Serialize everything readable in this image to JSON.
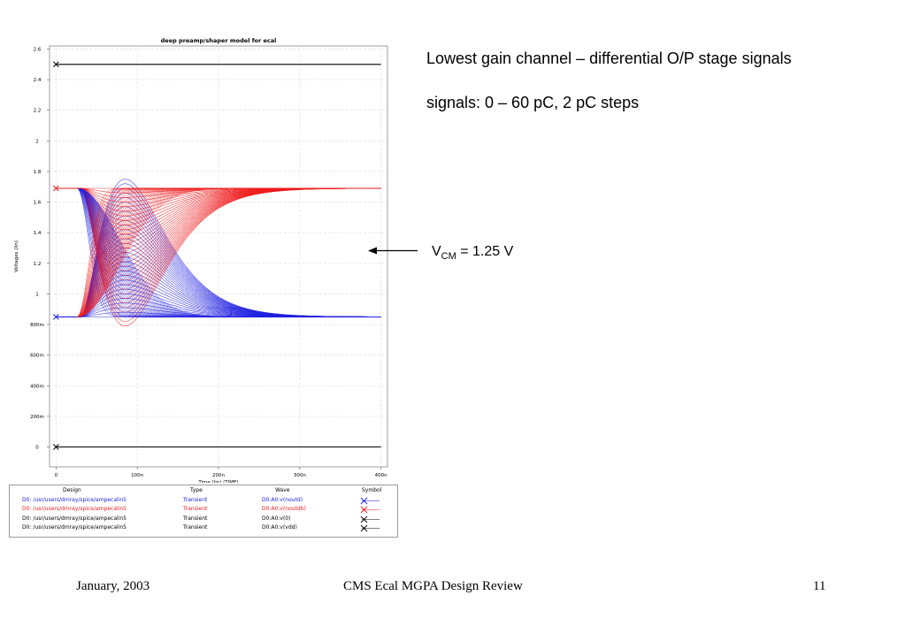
{
  "chart_data": {
    "type": "line",
    "title": "deep preamp/shaper model for ecal",
    "xlabel": "Time (lin) (TIME)",
    "ylabel": "Voltages (lin)",
    "xlim": [
      -8,
      408
    ],
    "ylim": [
      -0.13,
      2.62
    ],
    "xticks": [
      {
        "value": 0,
        "label": "0"
      },
      {
        "value": 100,
        "label": "100n"
      },
      {
        "value": 200,
        "label": "200n"
      },
      {
        "value": 300,
        "label": "300n"
      },
      {
        "value": 400,
        "label": "400n"
      }
    ],
    "yticks": [
      {
        "value": 0,
        "label": "0"
      },
      {
        "value": 0.2,
        "label": "200m"
      },
      {
        "value": 0.4,
        "label": "400m"
      },
      {
        "value": 0.6,
        "label": "600m"
      },
      {
        "value": 0.8,
        "label": "800m"
      },
      {
        "value": 1.0,
        "label": "1"
      },
      {
        "value": 1.2,
        "label": "1.2"
      },
      {
        "value": 1.4,
        "label": "1.4"
      },
      {
        "value": 1.6,
        "label": "1.6"
      },
      {
        "value": 1.8,
        "label": "1.8"
      },
      {
        "value": 2.0,
        "label": "2"
      },
      {
        "value": 2.2,
        "label": "2.2"
      },
      {
        "value": 2.4,
        "label": "2.4"
      },
      {
        "value": 2.6,
        "label": "2.6"
      }
    ],
    "grid": true,
    "series": [
      {
        "wave": "D0:A0:v(noutd)",
        "color": "#2020e0",
        "baseline": 0.85,
        "pulse_start_ns": 30,
        "peak_ns": 85,
        "charge_pC": {
          "min": 0,
          "max": 60,
          "step": 2
        },
        "max_excursion": 0.9
      },
      {
        "wave": "D0:A0:v(noutdb)",
        "color": "#ee1c1c",
        "baseline": 1.69,
        "pulse_start_ns": 30,
        "peak_ns": 85,
        "charge_pC": {
          "min": 0,
          "max": 60,
          "step": 2
        },
        "max_excursion": -0.9
      },
      {
        "wave": "D0:A0:v(0)",
        "color": "#000000",
        "constant": 0.0
      },
      {
        "wave": "D0:A0:v(vdd)",
        "color": "#000000",
        "constant": 2.5
      }
    ]
  },
  "legend": {
    "headers": {
      "design": "Design",
      "type": "Type",
      "wave": "Wave",
      "symbol": "Symbol"
    },
    "rows": [
      {
        "design": "D0: /usr/users/dmray/spice/ampecalin5",
        "type": "Transient",
        "wave": "D0:A0:v(noutd)",
        "color": "#2020e0"
      },
      {
        "design": "D0: /usr/users/dmray/spice/ampecalin5",
        "type": "Transient",
        "wave": "D0:A0:v(noutdb)",
        "color": "#ee1c1c"
      },
      {
        "design": "D0: /usr/users/dmray/spice/ampecalin5",
        "type": "Transient",
        "wave": "D0:A0:v(0)",
        "color": "#000000"
      },
      {
        "design": "D0: /usr/users/dmray/spice/ampecalin5",
        "type": "Transient",
        "wave": "D0:A0:v(vdd)",
        "color": "#000000"
      }
    ]
  },
  "text": {
    "heading": "Lowest gain channel – differential O/P stage signals",
    "signals": "signals: 0 – 60 pC, 2 pC steps",
    "vcm_letter": "V",
    "vcm_sub": "CM",
    "vcm_value": " = 1.25 V"
  },
  "footer": {
    "date": "January, 2003",
    "title": "CMS Ecal MGPA Design Review",
    "page": "11"
  }
}
